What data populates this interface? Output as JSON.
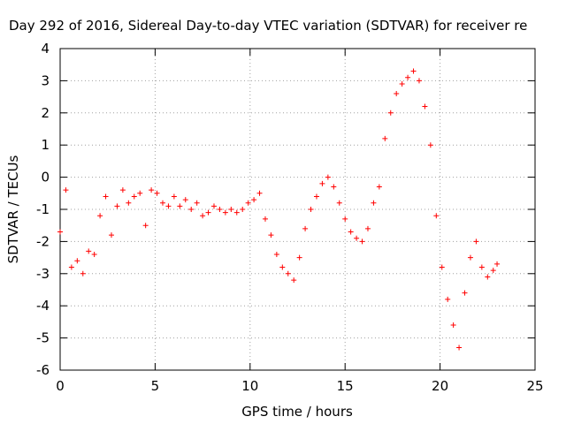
{
  "chart_data": {
    "type": "scatter",
    "title": "Day 292 of 2016, Sidereal Day-to-day VTEC variation (SDTVAR) for receiver re",
    "xlabel": "GPS time / hours",
    "ylabel": "SDTVAR / TECUs",
    "xlim": [
      0,
      25
    ],
    "ylim": [
      -6,
      4
    ],
    "xticks": [
      0,
      5,
      10,
      15,
      20,
      25
    ],
    "yticks": [
      -6,
      -5,
      -4,
      -3,
      -2,
      -1,
      0,
      1,
      2,
      3,
      4
    ],
    "grid": true,
    "marker": "+",
    "color": "#ff0000",
    "series": [
      {
        "name": "SDTVAR",
        "x": [
          0.0,
          0.3,
          0.6,
          0.9,
          1.2,
          1.5,
          1.8,
          2.1,
          2.4,
          2.7,
          3.0,
          3.3,
          3.6,
          3.9,
          4.2,
          4.5,
          4.8,
          5.1,
          5.4,
          5.7,
          6.0,
          6.3,
          6.6,
          6.9,
          7.2,
          7.5,
          7.8,
          8.1,
          8.4,
          8.7,
          9.0,
          9.3,
          9.6,
          9.9,
          10.2,
          10.5,
          10.8,
          11.1,
          11.4,
          11.7,
          12.0,
          12.3,
          12.6,
          12.9,
          13.2,
          13.5,
          13.8,
          14.1,
          14.4,
          14.7,
          15.0,
          15.3,
          15.6,
          15.9,
          16.2,
          16.5,
          16.8,
          17.1,
          17.4,
          17.7,
          18.0,
          18.3,
          18.6,
          18.9,
          19.2,
          19.5,
          19.8,
          20.1,
          20.4,
          20.7,
          21.0,
          21.3,
          21.6,
          21.9,
          22.2,
          22.5,
          22.8,
          23.0
        ],
        "y": [
          -1.7,
          -0.4,
          -2.8,
          -2.6,
          -3.0,
          -2.3,
          -2.4,
          -1.2,
          -0.6,
          -1.8,
          -0.9,
          -0.4,
          -0.8,
          -0.6,
          -0.5,
          -1.5,
          -0.4,
          -0.5,
          -0.8,
          -0.9,
          -0.6,
          -0.9,
          -0.7,
          -1.0,
          -0.8,
          -1.2,
          -1.1,
          -0.9,
          -1.0,
          -1.1,
          -1.0,
          -1.1,
          -1.0,
          -0.8,
          -0.7,
          -0.5,
          -1.3,
          -1.8,
          -2.4,
          -2.8,
          -3.0,
          -3.2,
          -2.5,
          -1.6,
          -1.0,
          -0.6,
          -0.2,
          0.0,
          -0.3,
          -0.8,
          -1.3,
          -1.7,
          -1.9,
          -2.0,
          -1.6,
          -0.8,
          -0.3,
          1.2,
          2.0,
          2.6,
          2.9,
          3.1,
          3.3,
          3.0,
          2.2,
          1.0,
          -1.2,
          -2.8,
          -3.8,
          -4.6,
          -5.3,
          -3.6,
          -2.5,
          -2.0,
          -2.8,
          -3.1,
          -2.9,
          -2.7
        ]
      }
    ]
  }
}
